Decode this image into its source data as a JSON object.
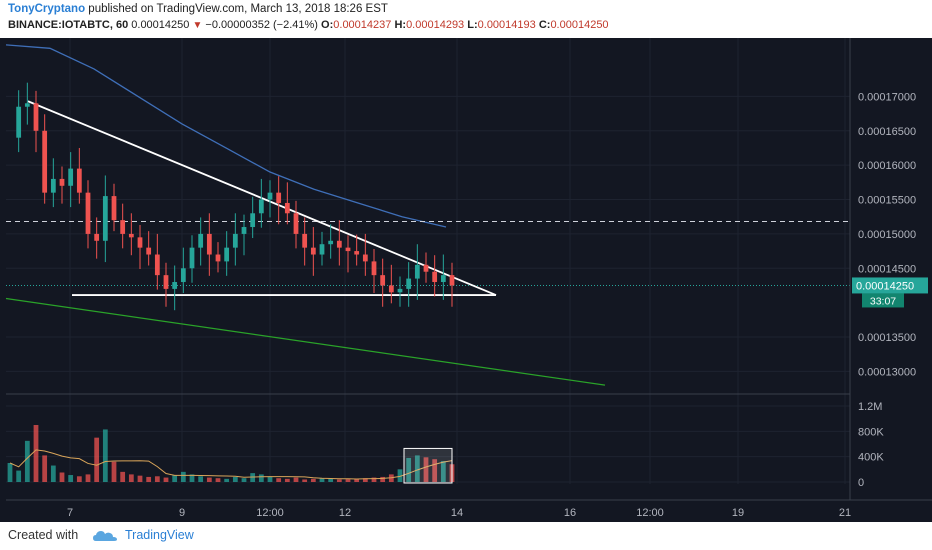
{
  "header": {
    "author": "TonyCryptano",
    "published_text": "published on TradingView.com, March 13, 2018 18:26 EST",
    "symbol": "BINANCE:IOTABTC, 60",
    "last": "0.00014250",
    "change_arrow": "▼",
    "change": "−0.00000352 (−2.41%)",
    "o_label": "O:",
    "o": "0.00014237",
    "h_label": "H:",
    "h": "0.00014293",
    "l_label": "L:",
    "l": "0.00014193",
    "c_label": "C:",
    "c": "0.00014250"
  },
  "footer": {
    "created_with": "Created with",
    "brand": "TradingView"
  },
  "colors": {
    "background": "#131722",
    "grid": "#1e2330",
    "up": "#26a69a",
    "down": "#ef5350",
    "ma_line": "#3f6fb8",
    "trendline": "#ffffff",
    "green_line": "#2aa329",
    "price_tag": "#26a69a",
    "volume_ma": "#d9a55a"
  },
  "chart_data": {
    "type": "candlestick",
    "symbol": "IOTABTC",
    "exchange": "BINANCE",
    "timeframe": "60",
    "x_ticks": [
      "7",
      "9",
      "12:00",
      "12",
      "14",
      "16",
      "12:00",
      "19",
      "21"
    ],
    "y_ticks": [
      "0.00017000",
      "0.00016500",
      "0.00016000",
      "0.00015500",
      "0.00015000",
      "0.00014500",
      "0.00013500",
      "0.00013000"
    ],
    "ylim": [
      0.000127,
      0.0001785
    ],
    "last_price": 0.0001425,
    "last_price_label": "0.00014250",
    "countdown_label": "33:07",
    "horizontal_dashed_level": 0.0001518,
    "annotations": {
      "descending_trendline": {
        "from": [
          "Mar 6",
          0.0001693
        ],
        "to": [
          "Mar 14",
          0.0001411
        ]
      },
      "support_line": {
        "level": 0.0001411,
        "from": "Mar 7",
        "to": "Mar 14"
      },
      "green_line": {
        "from": [
          "Mar 6",
          0.0001406
        ],
        "to": [
          "Mar 17",
          0.000128
        ]
      }
    },
    "price_series": [
      0.000164,
      0.0001685,
      0.000169,
      0.000165,
      0.000156,
      0.000158,
      0.000157,
      0.0001595,
      0.000156,
      0.00015,
      0.000149,
      0.0001555,
      0.000152,
      0.00015,
      0.0001495,
      0.000148,
      0.000147,
      0.000144,
      0.000142,
      0.000143,
      0.000145,
      0.000148,
      0.00015,
      0.000147,
      0.000146,
      0.000148,
      0.00015,
      0.000151,
      0.000153,
      0.000155,
      0.000156,
      0.0001545,
      0.000153,
      0.00015,
      0.000148,
      0.000147,
      0.0001485,
      0.000149,
      0.000148,
      0.0001475,
      0.000147,
      0.000146,
      0.000144,
      0.0001425,
      0.0001415,
      0.000142,
      0.0001435,
      0.0001455,
      0.0001445,
      0.000143,
      0.000144,
      0.0001425
    ],
    "volume_ticks": [
      "1.2M",
      "800K",
      "400K",
      "0"
    ],
    "volume_ylim": [
      0,
      1200000
    ],
    "volume_series": [
      300000,
      180000,
      650000,
      900000,
      420000,
      260000,
      150000,
      110000,
      90000,
      120000,
      700000,
      830000,
      320000,
      160000,
      120000,
      100000,
      80000,
      90000,
      70000,
      110000,
      160000,
      120000,
      90000,
      70000,
      60000,
      50000,
      80000,
      60000,
      140000,
      120000,
      80000,
      60000,
      50000,
      70000,
      40000,
      50000,
      60000,
      50000,
      40000,
      45000,
      50000,
      60000,
      70000,
      80000,
      120000,
      200000,
      380000,
      420000,
      390000,
      360000,
      330000,
      280000
    ]
  }
}
